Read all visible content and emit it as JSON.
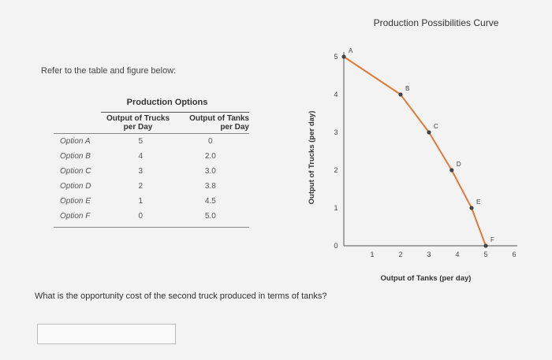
{
  "prompt": "Refer to the table and figure below:",
  "table": {
    "title": "Production Options",
    "col1": [
      "Output of Trucks",
      "per Day"
    ],
    "col2": [
      "Output of Tanks",
      "per Day"
    ],
    "rows": [
      {
        "label": "Option A",
        "trucks": "5",
        "tanks": "0"
      },
      {
        "label": "Option B",
        "trucks": "4",
        "tanks": "2.0"
      },
      {
        "label": "Option C",
        "trucks": "3",
        "tanks": "3.0"
      },
      {
        "label": "Option D",
        "trucks": "2",
        "tanks": "3.8"
      },
      {
        "label": "Option E",
        "trucks": "1",
        "tanks": "4.5"
      },
      {
        "label": "Option F",
        "trucks": "0",
        "tanks": "5.0"
      }
    ]
  },
  "chart_data": {
    "type": "line",
    "title": "Production Possibilities Curve",
    "xlabel": "Output of Tanks (per day)",
    "ylabel": "Output of Trucks (per day)",
    "xlim": [
      0,
      6
    ],
    "ylim": [
      0,
      5
    ],
    "xticks": [
      "1",
      "2",
      "3",
      "4",
      "5",
      "6"
    ],
    "yticks": [
      "0",
      "1",
      "2",
      "3",
      "4",
      "5"
    ],
    "line_color": "#e07b39",
    "point_color": "#444444",
    "points": [
      {
        "label": "A",
        "x": 0,
        "y": 5
      },
      {
        "label": "B",
        "x": 2.0,
        "y": 4
      },
      {
        "label": "C",
        "x": 3.0,
        "y": 3
      },
      {
        "label": "D",
        "x": 3.8,
        "y": 2
      },
      {
        "label": "E",
        "x": 4.5,
        "y": 1
      },
      {
        "label": "F",
        "x": 5.0,
        "y": 0
      }
    ]
  },
  "question": "What is the opportunity cost of the second truck produced in terms of tanks?",
  "answer": {
    "value": ""
  }
}
